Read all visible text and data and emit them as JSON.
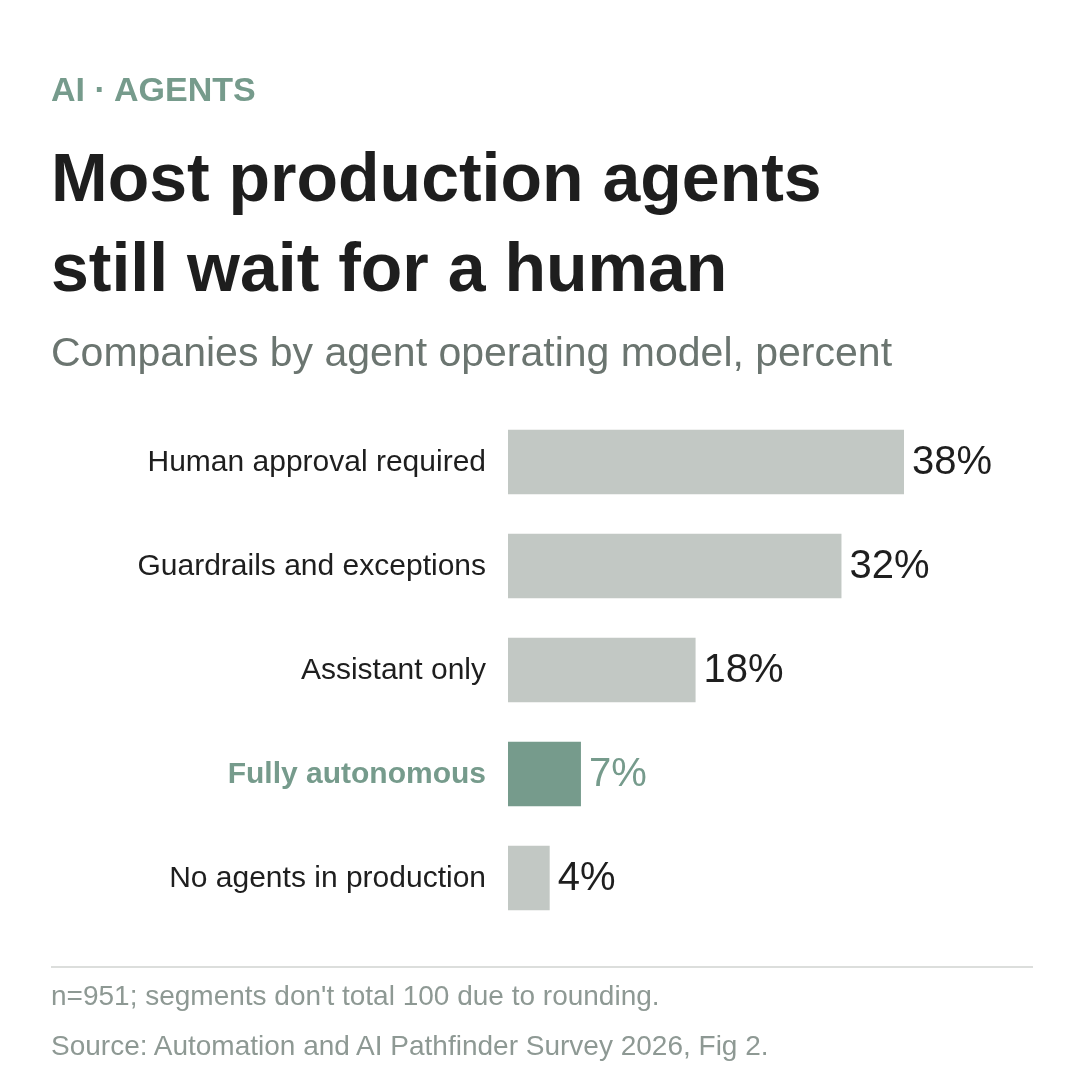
{
  "chart_data": {
    "type": "bar",
    "orientation": "horizontal",
    "title": "Most production agents still wait for a human",
    "subtitle": "Companies by agent operating model, percent",
    "categories": [
      "Human approval required",
      "Guardrails and exceptions",
      "Assistant only",
      "Fully autonomous",
      "No agents in production"
    ],
    "values": [
      38,
      32,
      18,
      7,
      4
    ],
    "colors": [
      "#c2c8c4",
      "#c2c8c4",
      "#c2c8c4",
      "#769b8c",
      "#c2c8c4"
    ],
    "value_labels": [
      "38%",
      "32%",
      "18%",
      "7%",
      "4%"
    ],
    "annotations": [
      "AI · AGENTS",
      "n=951; segments don't total 100 due to rounding.",
      "Source: Automation and AI Pathfinder Survey 2026, Fig 2."
    ]
  }
}
